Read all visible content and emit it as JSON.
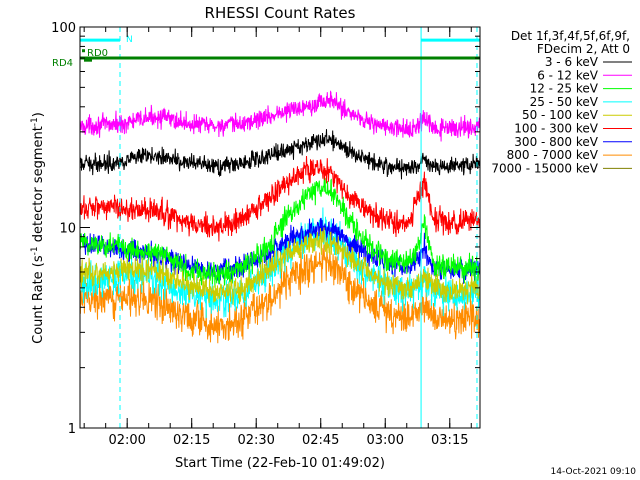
{
  "chart_data": {
    "type": "line",
    "title": "RHESSI Count Rates",
    "xlabel": "Start Time (22-Feb-10 01:49:02)",
    "ylabel": "Count Rate (s⁻¹ detector segment⁻¹)",
    "ylabel_main": "Count Rate (s",
    "ylabel_sup1": "-1",
    "ylabel_mid": " detector segment",
    "ylabel_sup2": "-1",
    "ylabel_end": ")",
    "yscale": "log",
    "ylim": [
      1,
      100
    ],
    "xlim_minutes": [
      0,
      93
    ],
    "x_tick_labels": [
      {
        "label": "02:00",
        "minute": 10.97
      },
      {
        "label": "02:15",
        "minute": 25.97
      },
      {
        "label": "02:30",
        "minute": 40.97
      },
      {
        "label": "02:45",
        "minute": 55.97
      },
      {
        "label": "03:00",
        "minute": 70.97
      },
      {
        "label": "03:15",
        "minute": 85.97
      }
    ],
    "y_tick_labels": [
      {
        "label": "1",
        "value": 1
      },
      {
        "label": "10",
        "value": 10
      },
      {
        "label": "100",
        "value": 100
      }
    ],
    "legend": {
      "placement": "top-right",
      "header_line1": "Det 1f,3f,4f,5f,6f,9f,",
      "header_line2": "FDecim 2, Att 0",
      "entries": [
        {
          "label": "3 - 6 keV",
          "color": "#000000"
        },
        {
          "label": "6 - 12 keV",
          "color": "#ff00ff"
        },
        {
          "label": "12 - 25 keV",
          "color": "#00ff00"
        },
        {
          "label": "25 - 50 keV",
          "color": "#00ffff"
        },
        {
          "label": "50 - 100 keV",
          "color": "#cccc00"
        },
        {
          "label": "100 - 300 keV",
          "color": "#ff0000"
        },
        {
          "label": "300 - 800 keV",
          "color": "#0000ff"
        },
        {
          "label": "800 - 7000 keV",
          "color": "#ff8c00"
        },
        {
          "label": "7000 - 15000 keV",
          "color": "#808000"
        }
      ]
    },
    "series": [
      {
        "name": "6 - 12 keV",
        "color": "#ff00ff",
        "noise": 0.055,
        "x": [
          0,
          10,
          18,
          25,
          32,
          38,
          44,
          50,
          55,
          58,
          60,
          63,
          67,
          70,
          74,
          78,
          80,
          82,
          85,
          93
        ],
        "y": [
          32,
          33,
          36,
          33,
          32,
          33,
          36,
          39,
          42,
          43,
          41,
          37,
          34,
          32,
          31,
          31,
          35,
          31,
          31,
          32
        ]
      },
      {
        "name": "3 - 6 keV",
        "color": "#000000",
        "noise": 0.05,
        "x": [
          0,
          10,
          18,
          25,
          32,
          38,
          44,
          50,
          55,
          58,
          60,
          63,
          67,
          70,
          74,
          78,
          80,
          82,
          85,
          93
        ],
        "y": [
          20.5,
          21.5,
          23,
          21,
          20,
          21,
          23,
          25,
          27,
          27.5,
          26,
          24,
          22,
          20.5,
          20,
          20,
          22,
          20,
          20,
          21
        ]
      },
      {
        "name": "100 - 300 keV",
        "color": "#ff0000",
        "noise": 0.07,
        "x": [
          0,
          3,
          10,
          18,
          25,
          32,
          38,
          44,
          50,
          55,
          58,
          60,
          63,
          67,
          70,
          74,
          77,
          79,
          80,
          81,
          82,
          85,
          93
        ],
        "y": [
          12,
          13,
          12.5,
          12,
          10.5,
          10,
          11,
          14,
          18,
          20,
          19,
          17,
          14,
          12,
          11,
          10.5,
          11,
          15,
          17,
          14,
          11,
          10.5,
          11
        ]
      },
      {
        "name": "12 - 25 keV",
        "color": "#00ff00",
        "noise": 0.07,
        "x": [
          0,
          5,
          10,
          18,
          25,
          32,
          38,
          44,
          48,
          52,
          56,
          58,
          60,
          63,
          67,
          70,
          74,
          77,
          79,
          80,
          81,
          82,
          85,
          93
        ],
        "y": [
          8.5,
          8.2,
          8,
          7.5,
          6.2,
          5.8,
          6.3,
          8,
          11,
          14,
          16,
          15.5,
          13.5,
          10.5,
          8.2,
          7.2,
          6.6,
          6.8,
          8.5,
          11,
          8.5,
          6.6,
          6.2,
          6.3
        ]
      },
      {
        "name": "300 - 800 keV",
        "color": "#0000ff",
        "noise": 0.065,
        "x": [
          0,
          3,
          10,
          18,
          25,
          32,
          38,
          44,
          48,
          52,
          56,
          58,
          60,
          63,
          67,
          70,
          74,
          77,
          79,
          80,
          81,
          82,
          85,
          93
        ],
        "y": [
          8.5,
          8.2,
          7.8,
          7.3,
          6.4,
          6.1,
          6.4,
          7.5,
          8.6,
          9.4,
          10,
          9.8,
          9.3,
          8.5,
          7.4,
          6.7,
          6.3,
          6.3,
          7.2,
          8.2,
          7,
          6.3,
          6.1,
          6.2
        ]
      },
      {
        "name": "25 - 50 keV",
        "color": "#00ffff",
        "noise": 0.1,
        "x": [
          0,
          5,
          10,
          18,
          25,
          32,
          38,
          44,
          48,
          52,
          56,
          58,
          60,
          63,
          67,
          70,
          74,
          77,
          80,
          82,
          85,
          93
        ],
        "y": [
          5.2,
          5.5,
          5.8,
          5.6,
          4.8,
          4.3,
          4.6,
          6,
          7.5,
          8.8,
          9.5,
          9.2,
          8.5,
          7.2,
          6,
          5.3,
          4.8,
          4.8,
          5.6,
          4.8,
          4.6,
          4.7
        ]
      },
      {
        "name": "50 - 100 keV",
        "color": "#cccc00",
        "noise": 0.07,
        "x": [
          0,
          5,
          10,
          18,
          25,
          32,
          38,
          44,
          48,
          52,
          56,
          58,
          60,
          63,
          67,
          70,
          74,
          77,
          80,
          82,
          85,
          93
        ],
        "y": [
          5.8,
          6,
          6.2,
          6,
          5.2,
          4.7,
          5,
          6.3,
          7.4,
          8.2,
          8.7,
          8.5,
          8,
          7,
          6,
          5.4,
          5,
          5,
          5.7,
          5,
          4.8,
          5
        ]
      },
      {
        "name": "800 - 7000 keV",
        "color": "#ff8c00",
        "noise": 0.1,
        "x": [
          0,
          5,
          10,
          18,
          25,
          32,
          38,
          44,
          48,
          52,
          56,
          58,
          60,
          63,
          67,
          70,
          74,
          77,
          80,
          82,
          85,
          93
        ],
        "y": [
          4.2,
          4.4,
          4.6,
          4.3,
          3.6,
          3.2,
          3.5,
          4.4,
          5.4,
          6.2,
          6.8,
          6.6,
          6.1,
          5.2,
          4.3,
          3.9,
          3.6,
          3.6,
          4.1,
          3.6,
          3.5,
          3.6
        ]
      }
    ],
    "flag_bars": [
      {
        "label": "RD4",
        "color": "#008000",
        "y": 70,
        "x_start": 0,
        "x_end": 93
      },
      {
        "label": "N",
        "color": "#00ffff",
        "y": 86,
        "x_start": 0,
        "x_end": 9.3
      },
      {
        "label": "",
        "color": "#00ffff",
        "y": 86,
        "x_start": 79.3,
        "x_end": 93
      }
    ],
    "flag_labels": [
      {
        "label": "RD0",
        "color": "#008000",
        "y": 74,
        "x": 0.6
      },
      {
        "label": "RD4",
        "color": "#008000",
        "y": 66,
        "x": -3.5
      }
    ],
    "vertical_lines": [
      {
        "minute": 9.3,
        "style": "dashed",
        "color": "#00ffff"
      },
      {
        "minute": 79.3,
        "style": "solid",
        "color": "#00ffff"
      },
      {
        "minute": 92.3,
        "style": "dashed",
        "color": "#00ffff"
      }
    ]
  },
  "footer": {
    "timestamp": "14-Oct-2021 09:10"
  }
}
